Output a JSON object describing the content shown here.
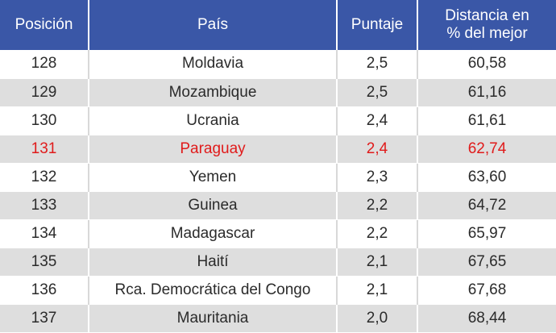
{
  "table": {
    "headers": [
      "Posición",
      "País",
      "Puntaje",
      "Distancia en\n% del mejor"
    ],
    "highlight_color": "#e01b1b",
    "header_color": "#3a57a7",
    "rows": [
      {
        "posicion": "128",
        "pais": "Moldavia",
        "puntaje": "2,5",
        "distancia": "60,58",
        "highlight": false
      },
      {
        "posicion": "129",
        "pais": "Mozambique",
        "puntaje": "2,5",
        "distancia": "61,16",
        "highlight": false
      },
      {
        "posicion": "130",
        "pais": "Ucrania",
        "puntaje": "2,4",
        "distancia": "61,61",
        "highlight": false
      },
      {
        "posicion": "131",
        "pais": "Paraguay",
        "puntaje": "2,4",
        "distancia": "62,74",
        "highlight": true
      },
      {
        "posicion": "132",
        "pais": "Yemen",
        "puntaje": "2,3",
        "distancia": "63,60",
        "highlight": false
      },
      {
        "posicion": "133",
        "pais": "Guinea",
        "puntaje": "2,2",
        "distancia": "64,72",
        "highlight": false
      },
      {
        "posicion": "134",
        "pais": "Madagascar",
        "puntaje": "2,2",
        "distancia": "65,97",
        "highlight": false
      },
      {
        "posicion": "135",
        "pais": "Haití",
        "puntaje": "2,1",
        "distancia": "67,65",
        "highlight": false
      },
      {
        "posicion": "136",
        "pais": "Rca. Democrática del Congo",
        "puntaje": "2,1",
        "distancia": "67,68",
        "highlight": false
      },
      {
        "posicion": "137",
        "pais": "Mauritania",
        "puntaje": "2,0",
        "distancia": "68,44",
        "highlight": false
      }
    ]
  }
}
